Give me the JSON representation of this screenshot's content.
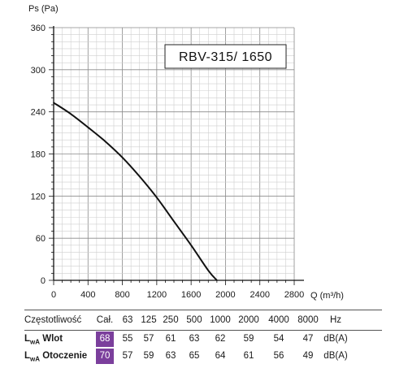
{
  "chart_data": {
    "type": "line",
    "title": "RBV-315/ 1650",
    "ylabel": "Ps (Pa)",
    "xlabel": "Q (m³/h)",
    "xlim": [
      0,
      2800
    ],
    "ylim": [
      0,
      360
    ],
    "xticks": [
      "0",
      "400",
      "800",
      "1200",
      "1600",
      "2000",
      "2400",
      "2800"
    ],
    "yticks": [
      "0",
      "60",
      "120",
      "180",
      "240",
      "300",
      "360"
    ],
    "grid": true,
    "series": [
      {
        "x": [
          0,
          200,
          400,
          600,
          800,
          1000,
          1200,
          1400,
          1600,
          1800,
          1900
        ],
        "y": [
          253,
          237,
          218,
          198,
          175,
          148,
          118,
          84,
          50,
          14,
          0
        ]
      }
    ]
  },
  "spectrum": {
    "header_label": "Częstotliwość",
    "header_cells": [
      "Cał.",
      "63",
      "125",
      "250",
      "500",
      "1000",
      "2000",
      "4000",
      "8000",
      "Hz"
    ],
    "rows": [
      {
        "lw": "L",
        "sub": "wA",
        "name": "Wlot",
        "cells": [
          "68",
          "55",
          "57",
          "61",
          "63",
          "62",
          "59",
          "54",
          "47",
          "dB(A)"
        ]
      },
      {
        "lw": "L",
        "sub": "wA",
        "name": "Otoczenie",
        "cells": [
          "70",
          "57",
          "59",
          "63",
          "65",
          "64",
          "61",
          "56",
          "49",
          "dB(A)"
        ]
      }
    ],
    "highlight_color": "#7b3f9c"
  }
}
